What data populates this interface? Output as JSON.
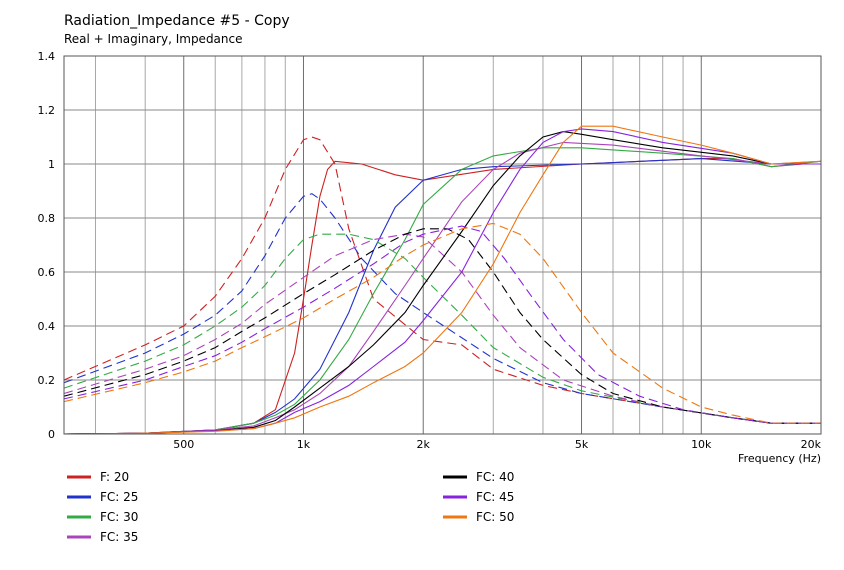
{
  "chart_data": {
    "type": "line",
    "title": "Radiation_Impedance #5 - Copy",
    "subtitle": "Real + Imaginary, Impedance",
    "xlabel": "Frequency  (Hz)",
    "ylabel": "",
    "x_scale": "log",
    "xlim": [
      250,
      20000
    ],
    "ylim": [
      0,
      1.4
    ],
    "grid": true,
    "legend_position": "bottom",
    "x_major_ticks": [
      {
        "value": 500,
        "label": "500"
      },
      {
        "value": 1000,
        "label": "1k"
      },
      {
        "value": 2000,
        "label": "2k"
      },
      {
        "value": 5000,
        "label": "5k"
      },
      {
        "value": 10000,
        "label": "10k"
      },
      {
        "value": 20000,
        "label": "20k"
      }
    ],
    "x_minor_ticks": [
      300,
      400,
      600,
      700,
      800,
      900,
      3000,
      4000,
      6000,
      7000,
      8000,
      9000
    ],
    "y_ticks": [
      {
        "value": 0,
        "label": "0"
      },
      {
        "value": 0.2,
        "label": "0.2"
      },
      {
        "value": 0.4,
        "label": "0.4"
      },
      {
        "value": 0.6,
        "label": "0.6"
      },
      {
        "value": 0.8,
        "label": "0.8"
      },
      {
        "value": 1.0,
        "label": "1"
      },
      {
        "value": 1.2,
        "label": "1.2"
      },
      {
        "value": 1.4,
        "label": "1.4"
      }
    ],
    "series": [
      {
        "name": "F: 20",
        "color": "#cc2222",
        "real": [
          [
            250,
            0
          ],
          [
            400,
            0.003
          ],
          [
            600,
            0.015
          ],
          [
            750,
            0.04
          ],
          [
            850,
            0.09
          ],
          [
            950,
            0.3
          ],
          [
            1000,
            0.5
          ],
          [
            1050,
            0.7
          ],
          [
            1100,
            0.88
          ],
          [
            1150,
            0.98
          ],
          [
            1200,
            1.01
          ],
          [
            1400,
            1.0
          ],
          [
            1700,
            0.96
          ],
          [
            2000,
            0.94
          ],
          [
            3000,
            0.98
          ],
          [
            5000,
            1.0
          ],
          [
            10000,
            1.02
          ],
          [
            12000,
            1.02
          ],
          [
            15000,
            0.99
          ],
          [
            18000,
            1.0
          ],
          [
            20000,
            1.0
          ]
        ],
        "imag": [
          [
            250,
            0.2
          ],
          [
            400,
            0.33
          ],
          [
            500,
            0.4
          ],
          [
            600,
            0.51
          ],
          [
            700,
            0.65
          ],
          [
            800,
            0.8
          ],
          [
            900,
            0.98
          ],
          [
            1000,
            1.09
          ],
          [
            1050,
            1.1
          ],
          [
            1100,
            1.09
          ],
          [
            1200,
            1.0
          ],
          [
            1300,
            0.76
          ],
          [
            1500,
            0.5
          ],
          [
            2000,
            0.35
          ],
          [
            2500,
            0.33
          ],
          [
            3000,
            0.24
          ],
          [
            4000,
            0.18
          ],
          [
            5000,
            0.15
          ],
          [
            8000,
            0.1
          ],
          [
            12000,
            0.06
          ],
          [
            15000,
            0.04
          ],
          [
            20000,
            0.04
          ]
        ]
      },
      {
        "name": "FC: 25",
        "color": "#2233cc",
        "real": [
          [
            250,
            0
          ],
          [
            400,
            0.003
          ],
          [
            600,
            0.015
          ],
          [
            750,
            0.04
          ],
          [
            850,
            0.08
          ],
          [
            950,
            0.13
          ],
          [
            1100,
            0.24
          ],
          [
            1300,
            0.45
          ],
          [
            1500,
            0.68
          ],
          [
            1700,
            0.84
          ],
          [
            2000,
            0.94
          ],
          [
            2500,
            0.98
          ],
          [
            3000,
            0.99
          ],
          [
            5000,
            1.0
          ],
          [
            10000,
            1.02
          ],
          [
            15000,
            1.0
          ],
          [
            20000,
            1.0
          ]
        ],
        "imag": [
          [
            250,
            0.19
          ],
          [
            400,
            0.3
          ],
          [
            500,
            0.37
          ],
          [
            600,
            0.44
          ],
          [
            700,
            0.53
          ],
          [
            800,
            0.66
          ],
          [
            900,
            0.8
          ],
          [
            1000,
            0.88
          ],
          [
            1050,
            0.89
          ],
          [
            1100,
            0.87
          ],
          [
            1200,
            0.8
          ],
          [
            1400,
            0.65
          ],
          [
            1700,
            0.52
          ],
          [
            2000,
            0.45
          ],
          [
            3000,
            0.28
          ],
          [
            4000,
            0.19
          ],
          [
            5000,
            0.15
          ],
          [
            8000,
            0.1
          ],
          [
            12000,
            0.06
          ],
          [
            15000,
            0.04
          ],
          [
            20000,
            0.04
          ]
        ]
      },
      {
        "name": "FC: 30",
        "color": "#33aa44",
        "real": [
          [
            250,
            0
          ],
          [
            400,
            0.003
          ],
          [
            600,
            0.015
          ],
          [
            750,
            0.04
          ],
          [
            850,
            0.07
          ],
          [
            950,
            0.11
          ],
          [
            1100,
            0.2
          ],
          [
            1300,
            0.35
          ],
          [
            1500,
            0.52
          ],
          [
            1800,
            0.72
          ],
          [
            2000,
            0.85
          ],
          [
            2500,
            0.98
          ],
          [
            3000,
            1.03
          ],
          [
            4000,
            1.06
          ],
          [
            5000,
            1.06
          ],
          [
            8000,
            1.04
          ],
          [
            12000,
            1.02
          ],
          [
            15000,
            0.99
          ],
          [
            20000,
            1.01
          ]
        ],
        "imag": [
          [
            250,
            0.17
          ],
          [
            400,
            0.27
          ],
          [
            500,
            0.33
          ],
          [
            600,
            0.4
          ],
          [
            700,
            0.47
          ],
          [
            800,
            0.55
          ],
          [
            900,
            0.65
          ],
          [
            1000,
            0.72
          ],
          [
            1100,
            0.74
          ],
          [
            1300,
            0.74
          ],
          [
            1500,
            0.72
          ],
          [
            1800,
            0.65
          ],
          [
            2000,
            0.58
          ],
          [
            2500,
            0.44
          ],
          [
            3000,
            0.32
          ],
          [
            4000,
            0.21
          ],
          [
            5000,
            0.16
          ],
          [
            8000,
            0.1
          ],
          [
            12000,
            0.06
          ],
          [
            15000,
            0.04
          ],
          [
            20000,
            0.04
          ]
        ]
      },
      {
        "name": "FC: 35",
        "color": "#aa44bb",
        "real": [
          [
            250,
            0
          ],
          [
            400,
            0.003
          ],
          [
            600,
            0.015
          ],
          [
            750,
            0.03
          ],
          [
            850,
            0.06
          ],
          [
            950,
            0.09
          ],
          [
            1100,
            0.15
          ],
          [
            1300,
            0.25
          ],
          [
            1500,
            0.38
          ],
          [
            1800,
            0.55
          ],
          [
            2000,
            0.65
          ],
          [
            2500,
            0.86
          ],
          [
            3000,
            0.98
          ],
          [
            3500,
            1.04
          ],
          [
            4500,
            1.08
          ],
          [
            6000,
            1.07
          ],
          [
            10000,
            1.03
          ],
          [
            15000,
            1.0
          ],
          [
            20000,
            1.01
          ]
        ],
        "imag": [
          [
            250,
            0.15
          ],
          [
            400,
            0.24
          ],
          [
            500,
            0.29
          ],
          [
            600,
            0.35
          ],
          [
            700,
            0.41
          ],
          [
            800,
            0.48
          ],
          [
            1000,
            0.58
          ],
          [
            1200,
            0.66
          ],
          [
            1500,
            0.72
          ],
          [
            1800,
            0.74
          ],
          [
            2000,
            0.73
          ],
          [
            2500,
            0.6
          ],
          [
            3000,
            0.44
          ],
          [
            3500,
            0.32
          ],
          [
            4500,
            0.2
          ],
          [
            6000,
            0.14
          ],
          [
            8000,
            0.1
          ],
          [
            12000,
            0.06
          ],
          [
            15000,
            0.04
          ],
          [
            20000,
            0.04
          ]
        ]
      },
      {
        "name": "FC: 40",
        "color": "#000000",
        "real": [
          [
            250,
            0
          ],
          [
            400,
            0.003
          ],
          [
            600,
            0.012
          ],
          [
            750,
            0.025
          ],
          [
            850,
            0.05
          ],
          [
            950,
            0.1
          ],
          [
            1100,
            0.17
          ],
          [
            1300,
            0.25
          ],
          [
            1500,
            0.33
          ],
          [
            1800,
            0.45
          ],
          [
            2000,
            0.55
          ],
          [
            2500,
            0.75
          ],
          [
            3000,
            0.92
          ],
          [
            3500,
            1.03
          ],
          [
            4000,
            1.1
          ],
          [
            4500,
            1.12
          ],
          [
            5000,
            1.11
          ],
          [
            6000,
            1.09
          ],
          [
            8000,
            1.06
          ],
          [
            12000,
            1.03
          ],
          [
            15000,
            1.0
          ],
          [
            20000,
            1.0
          ]
        ],
        "imag": [
          [
            250,
            0.14
          ],
          [
            400,
            0.22
          ],
          [
            500,
            0.27
          ],
          [
            600,
            0.32
          ],
          [
            700,
            0.38
          ],
          [
            800,
            0.43
          ],
          [
            1000,
            0.52
          ],
          [
            1200,
            0.59
          ],
          [
            1500,
            0.68
          ],
          [
            1800,
            0.74
          ],
          [
            2000,
            0.76
          ],
          [
            2300,
            0.76
          ],
          [
            2600,
            0.72
          ],
          [
            3000,
            0.6
          ],
          [
            3500,
            0.45
          ],
          [
            4000,
            0.35
          ],
          [
            5000,
            0.22
          ],
          [
            6000,
            0.15
          ],
          [
            8000,
            0.1
          ],
          [
            12000,
            0.06
          ],
          [
            15000,
            0.04
          ],
          [
            20000,
            0.04
          ]
        ]
      },
      {
        "name": "FC: 45",
        "color": "#8822dd",
        "real": [
          [
            250,
            0
          ],
          [
            400,
            0.003
          ],
          [
            600,
            0.012
          ],
          [
            750,
            0.02
          ],
          [
            850,
            0.04
          ],
          [
            950,
            0.08
          ],
          [
            1100,
            0.12
          ],
          [
            1300,
            0.18
          ],
          [
            1500,
            0.25
          ],
          [
            1800,
            0.34
          ],
          [
            2000,
            0.42
          ],
          [
            2500,
            0.6
          ],
          [
            3000,
            0.82
          ],
          [
            3500,
            0.98
          ],
          [
            4000,
            1.08
          ],
          [
            4500,
            1.12
          ],
          [
            5000,
            1.13
          ],
          [
            6000,
            1.12
          ],
          [
            8000,
            1.08
          ],
          [
            12000,
            1.04
          ],
          [
            15000,
            1.0
          ],
          [
            20000,
            1.0
          ]
        ],
        "imag": [
          [
            250,
            0.13
          ],
          [
            400,
            0.2
          ],
          [
            500,
            0.25
          ],
          [
            600,
            0.29
          ],
          [
            700,
            0.34
          ],
          [
            800,
            0.39
          ],
          [
            1000,
            0.47
          ],
          [
            1200,
            0.54
          ],
          [
            1500,
            0.63
          ],
          [
            1800,
            0.71
          ],
          [
            2000,
            0.74
          ],
          [
            2500,
            0.77
          ],
          [
            2800,
            0.75
          ],
          [
            3200,
            0.65
          ],
          [
            3700,
            0.52
          ],
          [
            4500,
            0.35
          ],
          [
            5500,
            0.22
          ],
          [
            7000,
            0.14
          ],
          [
            9000,
            0.09
          ],
          [
            12000,
            0.06
          ],
          [
            15000,
            0.04
          ],
          [
            20000,
            0.04
          ]
        ]
      },
      {
        "name": "FC: 50",
        "color": "#ee7711",
        "real": [
          [
            250,
            0
          ],
          [
            400,
            0.003
          ],
          [
            600,
            0.01
          ],
          [
            750,
            0.02
          ],
          [
            850,
            0.04
          ],
          [
            950,
            0.06
          ],
          [
            1100,
            0.1
          ],
          [
            1300,
            0.14
          ],
          [
            1500,
            0.19
          ],
          [
            1800,
            0.25
          ],
          [
            2000,
            0.3
          ],
          [
            2500,
            0.45
          ],
          [
            3000,
            0.63
          ],
          [
            3500,
            0.82
          ],
          [
            4000,
            0.96
          ],
          [
            4500,
            1.08
          ],
          [
            5000,
            1.14
          ],
          [
            6000,
            1.14
          ],
          [
            8000,
            1.1
          ],
          [
            10000,
            1.07
          ],
          [
            12000,
            1.04
          ],
          [
            15000,
            1.0
          ],
          [
            20000,
            1.01
          ]
        ],
        "imag": [
          [
            250,
            0.12
          ],
          [
            400,
            0.19
          ],
          [
            500,
            0.23
          ],
          [
            600,
            0.27
          ],
          [
            700,
            0.32
          ],
          [
            800,
            0.36
          ],
          [
            1000,
            0.43
          ],
          [
            1200,
            0.5
          ],
          [
            1500,
            0.58
          ],
          [
            1800,
            0.66
          ],
          [
            2000,
            0.7
          ],
          [
            2500,
            0.76
          ],
          [
            3000,
            0.78
          ],
          [
            3500,
            0.74
          ],
          [
            4000,
            0.65
          ],
          [
            5000,
            0.45
          ],
          [
            6000,
            0.3
          ],
          [
            8000,
            0.17
          ],
          [
            10000,
            0.1
          ],
          [
            12000,
            0.07
          ],
          [
            15000,
            0.04
          ],
          [
            20000,
            0.04
          ]
        ]
      }
    ]
  }
}
